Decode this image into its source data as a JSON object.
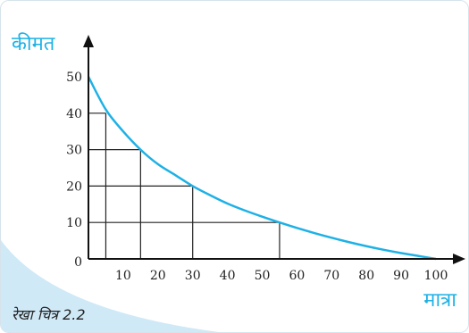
{
  "colors": {
    "curve": "#1eb1e6",
    "axis": "#111111",
    "steps": "#222222",
    "title": "#1eb1e6",
    "corner_wash": "#cfe9f7"
  },
  "chart_data": {
    "type": "line",
    "title": "",
    "xlabel": "मात्रा",
    "ylabel": "कीमत",
    "xlim": [
      0,
      100
    ],
    "ylim": [
      0,
      50
    ],
    "x_ticks": [
      "10",
      "20",
      "30",
      "40",
      "50",
      "60",
      "70",
      "80",
      "90",
      "100"
    ],
    "y_ticks": [
      "10",
      "20",
      "30",
      "40",
      "50"
    ],
    "origin_label": "0",
    "grid": false,
    "legend": "none",
    "series": [
      {
        "x": [
          0,
          5,
          10,
          15,
          20,
          25,
          30,
          35,
          40,
          45,
          50,
          55,
          60,
          65,
          70,
          75,
          80,
          85,
          90,
          95,
          100
        ],
        "y": [
          50,
          41,
          35,
          30,
          26,
          23,
          20,
          17.5,
          15.2,
          13.3,
          11.6,
          10,
          8.5,
          7.1,
          5.8,
          4.6,
          3.5,
          2.5,
          1.6,
          0.8,
          0
        ]
      }
    ],
    "step_points": [
      {
        "x": 5,
        "y": 40
      },
      {
        "x": 15,
        "y": 30
      },
      {
        "x": 30,
        "y": 20
      },
      {
        "x": 55,
        "y": 10
      }
    ],
    "caption": "रेखा चित्र 2.2"
  }
}
